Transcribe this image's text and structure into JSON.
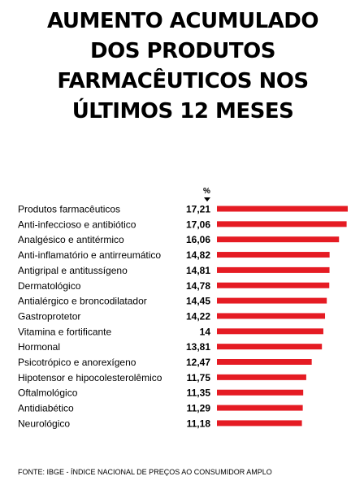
{
  "title_lines": [
    "AUMENTO ACUMULADO",
    "DOS PRODUTOS",
    "FARMACÊUTICOS NOS",
    "ÚLTIMOS 12 MESES"
  ],
  "unit": "%",
  "source": "FONTE: IBGE - ÍNDICE NACIONAL DE PREÇOS AO CONSUMIDOR AMPLO",
  "colors": {
    "bar": "#e51b23",
    "text": "#000000"
  },
  "chart_data": {
    "type": "bar",
    "orientation": "horizontal",
    "categories": [
      "Produtos farmacêuticos",
      "Anti-infeccioso e antibiótico",
      "Analgésico e antitérmico",
      "Anti-inflamatório e antirreumático",
      "Antigripal e antitussígeno",
      "Dermatológico",
      "Antialérgico e broncodilatador",
      "Gastroprotetor",
      "Vitamina e fortificante",
      "Hormonal",
      "Psicotrópico e anorexígeno",
      "Hipotensor e hipocolesterolêmico",
      "Oftalmológico",
      "Antidiabético",
      "Neurológico"
    ],
    "values": [
      17.21,
      17.06,
      16.06,
      14.82,
      14.81,
      14.78,
      14.45,
      14.22,
      14,
      13.81,
      12.47,
      11.75,
      11.35,
      11.29,
      11.18
    ],
    "value_labels": [
      "17,21",
      "17,06",
      "16,06",
      "14,82",
      "14,81",
      "14,78",
      "14,45",
      "14,22",
      "14",
      "13,81",
      "12,47",
      "11,75",
      "11,35",
      "11,29",
      "11,18"
    ],
    "xlim": [
      0,
      17.21
    ]
  }
}
